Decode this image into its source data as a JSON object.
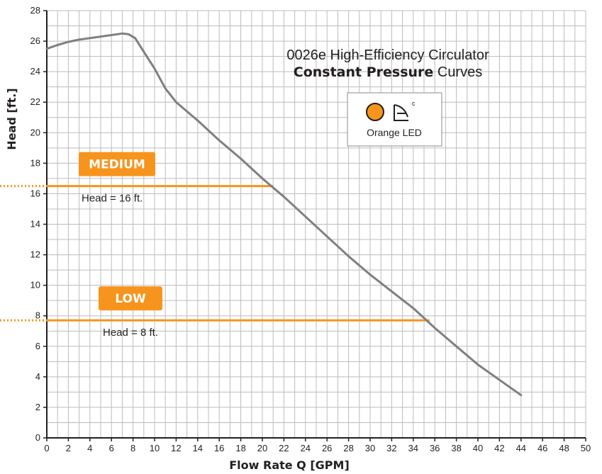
{
  "chart_data": {
    "type": "line",
    "title": "0026e High-Efficiency Circulator",
    "subtitle_bold": "Constant Pressure",
    "subtitle_rest": " Curves",
    "xlabel": "Flow Rate Q [GPM]",
    "ylabel": "Head [ft.]",
    "xlim": [
      0,
      50
    ],
    "ylim": [
      0,
      28
    ],
    "x_ticks": [
      0,
      2,
      4,
      6,
      8,
      10,
      12,
      14,
      16,
      18,
      20,
      22,
      24,
      26,
      28,
      30,
      32,
      34,
      36,
      38,
      40,
      42,
      44,
      46,
      48,
      50
    ],
    "y_ticks": [
      0,
      2,
      4,
      6,
      8,
      10,
      12,
      14,
      16,
      18,
      20,
      22,
      24,
      26,
      28
    ],
    "grid": true,
    "curve": {
      "x": [
        0,
        1,
        2,
        3,
        4,
        5,
        6,
        7,
        7.6,
        8.2,
        9,
        10,
        11,
        12,
        14,
        16,
        18,
        20,
        22,
        24,
        26,
        28,
        30,
        32,
        34,
        36,
        38,
        40,
        42,
        44
      ],
      "y": [
        25.5,
        25.75,
        25.95,
        26.1,
        26.2,
        26.3,
        26.4,
        26.5,
        26.45,
        26.2,
        25.3,
        24.2,
        22.9,
        22.0,
        20.8,
        19.5,
        18.3,
        17.0,
        15.8,
        14.5,
        13.2,
        11.9,
        10.7,
        9.6,
        8.5,
        7.2,
        6.0,
        4.8,
        3.8,
        2.8
      ]
    },
    "levels": [
      {
        "name": "MEDIUM",
        "annotation": "Head = 16 ft.",
        "head_value": 16.5,
        "x_end": 21
      },
      {
        "name": "LOW",
        "annotation": "Head = 8 ft.",
        "head_value": 7.7,
        "x_end": 35.5
      }
    ],
    "legend": {
      "text": "Orange LED",
      "superscript": "c",
      "placement": "top-right"
    },
    "colors": {
      "curve": "#7f7f80",
      "level": "#f7941d",
      "grid": "#bcbcbc",
      "axis": "#231f20"
    }
  }
}
